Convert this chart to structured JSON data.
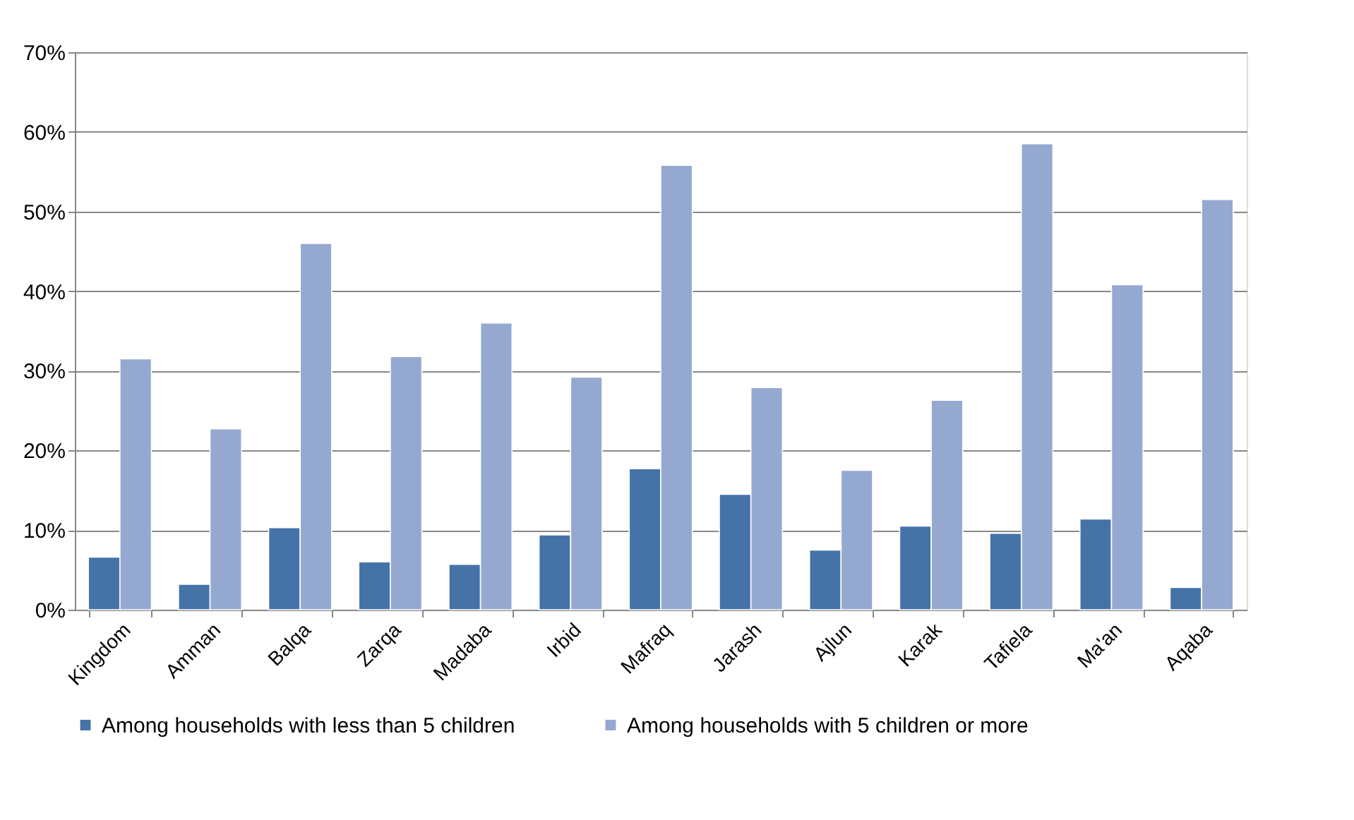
{
  "chart_data": {
    "type": "bar",
    "categories": [
      "Kingdom",
      "Amman",
      "Balqa",
      "Zarqa",
      "Madaba",
      "Irbid",
      "Mafraq",
      "Jarash",
      "Ajlun",
      "Karak",
      "Tafiela",
      "Ma'an",
      "Aqaba"
    ],
    "series": [
      {
        "name": "Among households with less than 5 children",
        "color": "#4573a7",
        "values": [
          6.6,
          3.2,
          10.3,
          6.0,
          5.7,
          9.4,
          17.7,
          14.5,
          7.5,
          10.5,
          9.6,
          11.4,
          2.8
        ]
      },
      {
        "name": "Among households with 5 children or more",
        "color": "#95a9d0",
        "values": [
          31.5,
          22.7,
          46.0,
          31.8,
          36.0,
          29.2,
          55.8,
          27.9,
          17.5,
          26.3,
          58.5,
          40.8,
          51.5
        ]
      }
    ],
    "ylim": [
      0,
      70
    ],
    "yticks": [
      {
        "value": 0,
        "label": "0%"
      },
      {
        "value": 10,
        "label": "10%"
      },
      {
        "value": 20,
        "label": "20%"
      },
      {
        "value": 30,
        "label": "30%"
      },
      {
        "value": 40,
        "label": "40%"
      },
      {
        "value": 50,
        "label": "50%"
      },
      {
        "value": 60,
        "label": "60%"
      },
      {
        "value": 70,
        "label": "70%"
      }
    ],
    "grid": "y",
    "legend": "bottom"
  }
}
